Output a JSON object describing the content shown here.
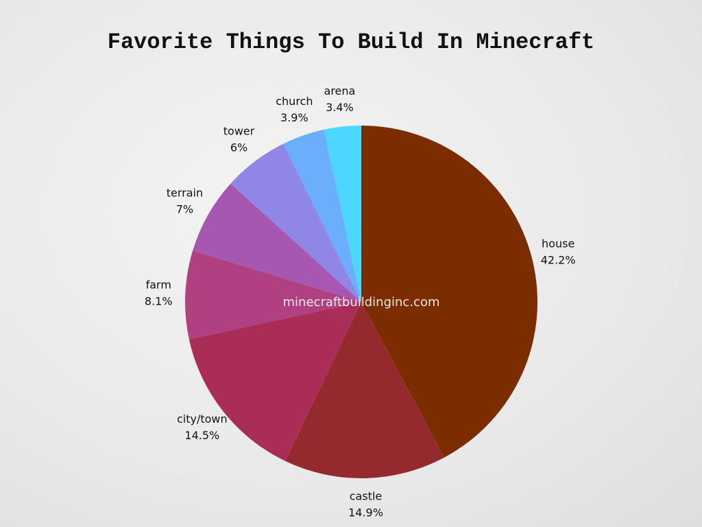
{
  "chart_data": {
    "type": "pie",
    "title": "Favorite Things To Build In Minecraft",
    "watermark": "minecraftbuildinginc.com",
    "categories": [
      "house",
      "castle",
      "city/town",
      "farm",
      "terrain",
      "tower",
      "church",
      "arena"
    ],
    "values": [
      42.2,
      14.9,
      14.5,
      8.1,
      7,
      6,
      3.9,
      3.4
    ],
    "value_labels": [
      "42.2%",
      "14.9%",
      "14.5%",
      "8.1%",
      "7%",
      "6%",
      "3.9%",
      "3.4%"
    ],
    "colors": [
      "#7b2d00",
      "#952a2e",
      "#aa2d58",
      "#b0407f",
      "#a657b0",
      "#8f86e6",
      "#6aaefc",
      "#4dd6ff"
    ]
  }
}
